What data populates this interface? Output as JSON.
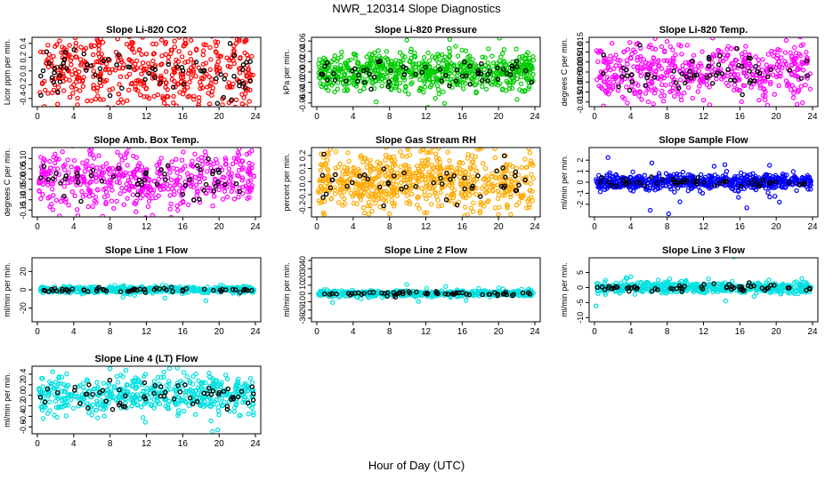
{
  "figure": {
    "title": "NWR_120314  Slope Diagnostics",
    "xlabel": "Hour of Day (UTC)"
  },
  "chart_data": [
    {
      "type": "scatter",
      "title": "Slope Li-820 CO2",
      "ylabel": "Licor ppm per min.",
      "color": "#ff0000",
      "xlim": [
        0,
        24
      ],
      "xticks": [
        0,
        4,
        8,
        12,
        16,
        20,
        24
      ],
      "ylim": [
        -0.48,
        0.45
      ],
      "yticks": [
        -0.4,
        -0.2,
        0.0,
        0.2,
        0.4
      ],
      "ytick_labels": [
        "-0.4",
        "-0.2",
        "0.0",
        "0.2",
        "0.4"
      ],
      "spread": 0.3,
      "n": 520,
      "n_black": 70
    },
    {
      "type": "scatter",
      "title": "Slope Li-820 Pressure",
      "ylabel": "kPa per min.",
      "color": "#00cc00",
      "xlim": [
        0,
        24
      ],
      "xticks": [
        0,
        4,
        8,
        12,
        16,
        20,
        24
      ],
      "ylim": [
        -0.062,
        0.062
      ],
      "yticks": [
        -0.06,
        -0.04,
        -0.02,
        0.0,
        0.02,
        0.04,
        0.06
      ],
      "ytick_labels": [
        "-0.06",
        "-0.04",
        "-0.02",
        "0.00",
        "0.02",
        "0.04",
        "0.06"
      ],
      "spread": 0.018,
      "n": 700,
      "n_black": 60
    },
    {
      "type": "scatter",
      "title": "Slope Li-820 Temp.",
      "ylabel": "degrees C per min.",
      "color": "#ff00ff",
      "xlim": [
        0,
        24
      ],
      "xticks": [
        0,
        4,
        8,
        12,
        16,
        20,
        24
      ],
      "ylim": [
        -0.016,
        0.016
      ],
      "yticks": [
        -0.015,
        -0.01,
        -0.005,
        0.0,
        0.005,
        0.01,
        0.015
      ],
      "ytick_labels": [
        "-0.015",
        "-0.010",
        "-0.005",
        "0.000",
        "0.005",
        "0.010",
        "0.015"
      ],
      "spread": 0.007,
      "n": 520,
      "n_black": 60
    },
    {
      "type": "scatter",
      "title": "Slope Amb. Box Temp.",
      "ylabel": "degrees C per min.",
      "color": "#ff00ff",
      "xlim": [
        0,
        24
      ],
      "xticks": [
        0,
        4,
        8,
        12,
        16,
        20,
        24
      ],
      "ylim": [
        -0.17,
        0.14
      ],
      "yticks": [
        -0.15,
        -0.1,
        -0.05,
        0.0,
        0.05,
        0.1
      ],
      "ytick_labels": [
        "-0.15",
        "-0.10",
        "-0.05",
        "0.00",
        "0.05",
        "0.10"
      ],
      "spread": 0.07,
      "n": 520,
      "n_black": 50
    },
    {
      "type": "scatter",
      "title": "Slope Gas Stream RH",
      "ylabel": "percent per min.",
      "color": "#ffaa00",
      "xlim": [
        0,
        24
      ],
      "xticks": [
        0,
        4,
        8,
        12,
        16,
        20,
        24
      ],
      "ylim": [
        -0.25,
        0.24
      ],
      "yticks": [
        -0.2,
        -0.1,
        0.0,
        0.1,
        0.2
      ],
      "ytick_labels": [
        "-0.2",
        "-0.1",
        "0.0",
        "0.1",
        "0.2"
      ],
      "spread": 0.11,
      "n": 700,
      "n_black": 50
    },
    {
      "type": "scatter",
      "title": "Slope Sample Flow",
      "ylabel": "ml/min per min.",
      "color": "#0000ff",
      "xlim": [
        0,
        24
      ],
      "xticks": [
        0,
        4,
        8,
        12,
        16,
        20,
        24
      ],
      "ylim": [
        -2.9,
        2.9
      ],
      "yticks": [
        -2,
        -1,
        0,
        1,
        2
      ],
      "ytick_labels": [
        "-2",
        "-1",
        "0",
        "1",
        "2"
      ],
      "spread": 0.35,
      "n": 620,
      "n_black": 50
    },
    {
      "type": "scatter",
      "title": "Slope Line 1 Flow",
      "ylabel": "ml/min per min.",
      "color": "#00e0e0",
      "xlim": [
        0,
        24
      ],
      "xticks": [
        0,
        4,
        8,
        12,
        16,
        20,
        24
      ],
      "ylim": [
        -32,
        32
      ],
      "yticks": [
        -20,
        0,
        20
      ],
      "ytick_labels": [
        "-20",
        "0",
        "20"
      ],
      "spread": 1.6,
      "n": 520,
      "n_black": 60
    },
    {
      "type": "scatter",
      "title": "Slope Line 2 Flow",
      "ylabel": "ml/min per min.",
      "color": "#00e0e0",
      "xlim": [
        0,
        24
      ],
      "xticks": [
        0,
        4,
        8,
        12,
        16,
        20,
        24
      ],
      "ylim": [
        -31,
        40
      ],
      "yticks": [
        -30,
        -20,
        -10,
        0,
        10,
        20,
        30,
        40
      ],
      "ytick_labels": [
        "-30",
        "-20",
        "-10",
        "0",
        "10",
        "20",
        "30",
        "40"
      ],
      "spread": 1.8,
      "n": 520,
      "n_black": 60
    },
    {
      "type": "scatter",
      "title": "Slope Line 3 Flow",
      "ylabel": "ml/min per min.",
      "color": "#00e0e0",
      "xlim": [
        0,
        24
      ],
      "xticks": [
        0,
        4,
        8,
        12,
        16,
        20,
        24
      ],
      "ylim": [
        -10.5,
        9
      ],
      "yticks": [
        -10,
        -5,
        0,
        5
      ],
      "ytick_labels": [
        "-10",
        "-5",
        "0",
        "5"
      ],
      "spread": 0.9,
      "n": 520,
      "n_black": 60
    },
    {
      "type": "scatter",
      "title": "Slope Line 4 (LT) Flow",
      "ylabel": "ml/min per min.",
      "color": "#00e0e0",
      "xlim": [
        0,
        24
      ],
      "xticks": [
        0,
        4,
        8,
        12,
        16,
        20,
        24
      ],
      "ylim": [
        -0.68,
        0.5
      ],
      "yticks": [
        -0.6,
        -0.4,
        -0.2,
        0.0,
        0.2,
        0.4
      ],
      "ytick_labels": [
        "-0.6",
        "-0.4",
        "-0.2",
        "0.0",
        "0.2",
        "0.4"
      ],
      "spread": 0.18,
      "n": 520,
      "n_black": 60
    }
  ]
}
